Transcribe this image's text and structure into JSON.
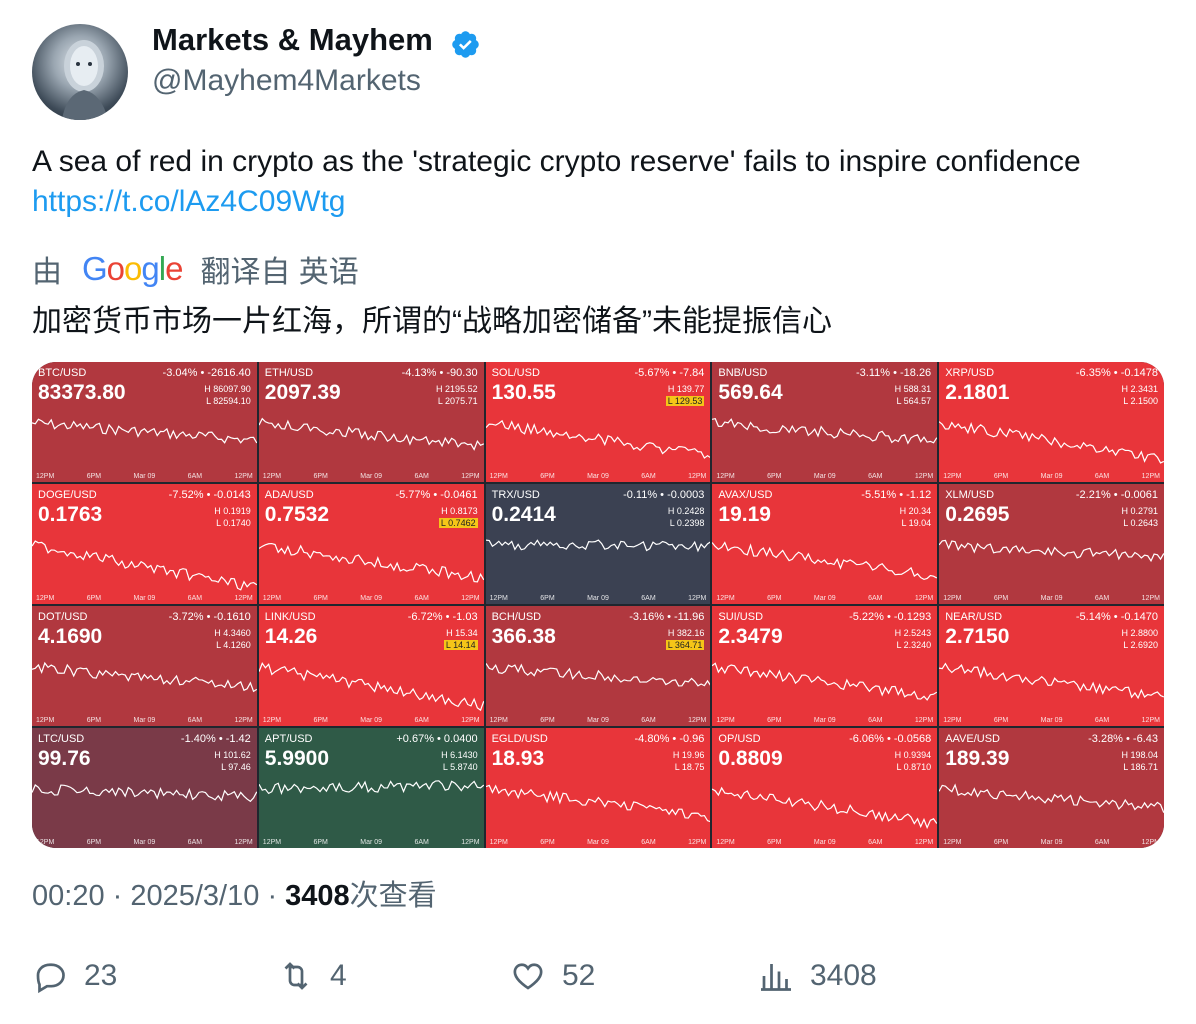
{
  "tweet": {
    "author_name": "Markets & Mayhem",
    "handle": "@Mayhem4Markets",
    "text": "A sea of red in crypto as the 'strategic crypto reserve' fails to inspire confidence",
    "link": "https://t.co/lAz4C09Wtg",
    "translate_prefix": "由",
    "translate_logo": "Google",
    "translate_suffix": "翻译自 英语",
    "translated_text": "加密货币市场一片红海，所谓的“战略加密储备”未能提振信心",
    "time": "00:20",
    "date": "2025/3/10",
    "views_count": "3408",
    "views_label": "次查看"
  },
  "actions": {
    "replies": "23",
    "retweets": "4",
    "likes": "52",
    "views": "3408"
  },
  "colors": {
    "verified": "#1d9bf0",
    "link": "#1d9bf0",
    "bright_red": "#e8353a",
    "dark_red": "#b1383f",
    "maroon": "#7a3a48",
    "slate": "#3b4152",
    "green": "#2f5a47"
  },
  "axis_labels": [
    "12PM",
    "6PM",
    "Mar 09",
    "6AM",
    "12PM"
  ],
  "tiles": [
    {
      "pair": "BTC/USD",
      "change": "-3.04% • -2616.40",
      "price": "83373.80",
      "high": "H 86097.90",
      "low": "L 82594.10",
      "color": "dark_red",
      "low_highlight": false
    },
    {
      "pair": "ETH/USD",
      "change": "-4.13% • -90.30",
      "price": "2097.39",
      "high": "H 2195.52",
      "low": "L 2075.71",
      "color": "dark_red",
      "low_highlight": false
    },
    {
      "pair": "SOL/USD",
      "change": "-5.67% • -7.84",
      "price": "130.55",
      "high": "H 139.77",
      "low": "L 129.53",
      "color": "bright_red",
      "low_highlight": true
    },
    {
      "pair": "BNB/USD",
      "change": "-3.11% • -18.26",
      "price": "569.64",
      "high": "H 588.31",
      "low": "L 564.57",
      "color": "dark_red",
      "low_highlight": false
    },
    {
      "pair": "XRP/USD",
      "change": "-6.35% • -0.1478",
      "price": "2.1801",
      "high": "H 2.3431",
      "low": "L 2.1500",
      "color": "bright_red",
      "low_highlight": false
    },
    {
      "pair": "DOGE/USD",
      "change": "-7.52% • -0.0143",
      "price": "0.1763",
      "high": "H 0.1919",
      "low": "L 0.1740",
      "color": "bright_red",
      "low_highlight": false
    },
    {
      "pair": "ADA/USD",
      "change": "-5.77% • -0.0461",
      "price": "0.7532",
      "high": "H 0.8173",
      "low": "L 0.7462",
      "color": "bright_red",
      "low_highlight": true
    },
    {
      "pair": "TRX/USD",
      "change": "-0.11% • -0.0003",
      "price": "0.2414",
      "high": "H 0.2428",
      "low": "L 0.2398",
      "color": "slate",
      "low_highlight": false
    },
    {
      "pair": "AVAX/USD",
      "change": "-5.51% • -1.12",
      "price": "19.19",
      "high": "H 20.34",
      "low": "L 19.04",
      "color": "bright_red",
      "low_highlight": false
    },
    {
      "pair": "XLM/USD",
      "change": "-2.21% • -0.0061",
      "price": "0.2695",
      "high": "H 0.2791",
      "low": "L 0.2643",
      "color": "dark_red",
      "low_highlight": false
    },
    {
      "pair": "DOT/USD",
      "change": "-3.72% • -0.1610",
      "price": "4.1690",
      "high": "H 4.3460",
      "low": "L 4.1260",
      "color": "dark_red",
      "low_highlight": false
    },
    {
      "pair": "LINK/USD",
      "change": "-6.72% • -1.03",
      "price": "14.26",
      "high": "H 15.34",
      "low": "L 14.14",
      "color": "bright_red",
      "low_highlight": true
    },
    {
      "pair": "BCH/USD",
      "change": "-3.16% • -11.96",
      "price": "366.38",
      "high": "H 382.16",
      "low": "L 364.71",
      "color": "dark_red",
      "low_highlight": true
    },
    {
      "pair": "SUI/USD",
      "change": "-5.22% • -0.1293",
      "price": "2.3479",
      "high": "H 2.5243",
      "low": "L 2.3240",
      "color": "bright_red",
      "low_highlight": false
    },
    {
      "pair": "NEAR/USD",
      "change": "-5.14% • -0.1470",
      "price": "2.7150",
      "high": "H 2.8800",
      "low": "L 2.6920",
      "color": "bright_red",
      "low_highlight": false
    },
    {
      "pair": "LTC/USD",
      "change": "-1.40% • -1.42",
      "price": "99.76",
      "high": "H 101.62",
      "low": "L 97.46",
      "color": "maroon",
      "low_highlight": false
    },
    {
      "pair": "APT/USD",
      "change": "+0.67% • 0.0400",
      "price": "5.9900",
      "high": "H 6.1430",
      "low": "L 5.8740",
      "color": "green",
      "low_highlight": false
    },
    {
      "pair": "EGLD/USD",
      "change": "-4.80% • -0.96",
      "price": "18.93",
      "high": "H 19.96",
      "low": "L 18.75",
      "color": "bright_red",
      "low_highlight": false
    },
    {
      "pair": "OP/USD",
      "change": "-6.06% • -0.0568",
      "price": "0.8809",
      "high": "H 0.9394",
      "low": "L 0.8710",
      "color": "bright_red",
      "low_highlight": false
    },
    {
      "pair": "AAVE/USD",
      "change": "-3.28% • -6.43",
      "price": "189.39",
      "high": "H 198.04",
      "low": "L 186.71",
      "color": "dark_red",
      "low_highlight": false
    }
  ]
}
